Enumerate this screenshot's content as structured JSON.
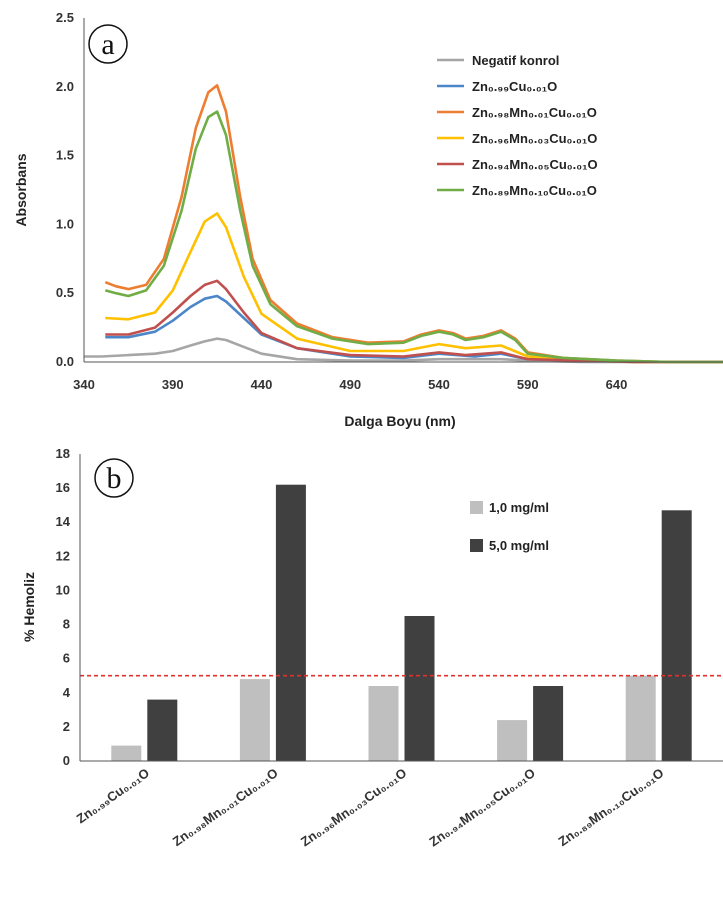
{
  "chart_data": [
    {
      "type": "line",
      "panel_label": "a",
      "xlabel": "Dalga Boyu (nm)",
      "ylabel": "Absorbans",
      "xlim": [
        340,
        700
      ],
      "ylim": [
        0,
        2.5
      ],
      "xticks": [
        "340",
        "390",
        "440",
        "490",
        "540",
        "590",
        "640"
      ],
      "yticks": [
        "0.0",
        "0.5",
        "1.0",
        "1.5",
        "2.0",
        "2.5"
      ],
      "grid": false,
      "legend_position": "top-right",
      "series": [
        {
          "name": "Negatif konrol",
          "color": "#a6a6a6",
          "x": [
            340,
            350,
            365,
            380,
            390,
            400,
            408,
            415,
            420,
            430,
            440,
            460,
            490,
            520,
            540,
            560,
            575,
            590,
            620,
            650,
            680,
            700
          ],
          "y": [
            0.04,
            0.04,
            0.05,
            0.06,
            0.08,
            0.12,
            0.15,
            0.17,
            0.16,
            0.11,
            0.06,
            0.02,
            0.01,
            0.01,
            0.02,
            0.02,
            0.02,
            0.01,
            0.0,
            0.0,
            0.0,
            0.0
          ]
        },
        {
          "name": "Zn₀.₉₉Cu₀.₀₁O",
          "color": "#4a86c8",
          "x": [
            352,
            365,
            380,
            390,
            400,
            408,
            415,
            420,
            430,
            440,
            460,
            490,
            520,
            540,
            560,
            575,
            590,
            620,
            650,
            680,
            700
          ],
          "y": [
            0.18,
            0.18,
            0.22,
            0.3,
            0.4,
            0.46,
            0.48,
            0.44,
            0.32,
            0.2,
            0.1,
            0.04,
            0.03,
            0.06,
            0.04,
            0.06,
            0.02,
            0.01,
            0.0,
            0.0,
            0.0
          ]
        },
        {
          "name": "Zn₀.₉₈Mn₀.₀₁Cu₀.₀₁O",
          "color": "#ed7d31",
          "x": [
            352,
            358,
            365,
            375,
            385,
            395,
            403,
            410,
            415,
            420,
            428,
            435,
            445,
            460,
            480,
            500,
            520,
            530,
            540,
            548,
            555,
            565,
            575,
            583,
            590,
            610,
            640,
            670,
            700
          ],
          "y": [
            0.58,
            0.55,
            0.53,
            0.56,
            0.75,
            1.2,
            1.7,
            1.96,
            2.01,
            1.82,
            1.2,
            0.75,
            0.45,
            0.28,
            0.18,
            0.14,
            0.15,
            0.2,
            0.23,
            0.21,
            0.17,
            0.19,
            0.23,
            0.17,
            0.07,
            0.03,
            0.01,
            0.0,
            0.0
          ]
        },
        {
          "name": "Zn₀.₉₆Mn₀.₀₃Cu₀.₀₁O",
          "color": "#ffc000",
          "x": [
            352,
            365,
            380,
            390,
            400,
            408,
            415,
            420,
            430,
            440,
            460,
            490,
            520,
            540,
            555,
            575,
            590,
            620,
            650,
            680,
            700
          ],
          "y": [
            0.32,
            0.31,
            0.36,
            0.52,
            0.8,
            1.02,
            1.08,
            0.98,
            0.62,
            0.35,
            0.17,
            0.08,
            0.08,
            0.13,
            0.1,
            0.12,
            0.04,
            0.01,
            0.0,
            0.0,
            0.0
          ]
        },
        {
          "name": "Zn₀.₉₄Mn₀.₀₅Cu₀.₀₁O",
          "color": "#c0504d",
          "x": [
            352,
            365,
            380,
            390,
            400,
            408,
            415,
            420,
            430,
            440,
            460,
            490,
            520,
            540,
            555,
            575,
            590,
            620,
            650,
            680,
            700
          ],
          "y": [
            0.2,
            0.2,
            0.25,
            0.36,
            0.48,
            0.56,
            0.59,
            0.53,
            0.36,
            0.21,
            0.1,
            0.05,
            0.04,
            0.07,
            0.05,
            0.07,
            0.02,
            0.01,
            0.0,
            0.0,
            0.0
          ]
        },
        {
          "name": "Zn₀.₈₉Mn₀.₁₀Cu₀.₀₁O",
          "color": "#70ad47",
          "x": [
            352,
            358,
            365,
            375,
            385,
            395,
            403,
            410,
            415,
            420,
            428,
            435,
            445,
            460,
            480,
            500,
            520,
            530,
            540,
            548,
            555,
            565,
            575,
            583,
            590,
            610,
            640,
            670,
            700
          ],
          "y": [
            0.52,
            0.5,
            0.48,
            0.52,
            0.7,
            1.1,
            1.55,
            1.78,
            1.82,
            1.65,
            1.1,
            0.7,
            0.42,
            0.26,
            0.17,
            0.13,
            0.14,
            0.19,
            0.22,
            0.2,
            0.16,
            0.18,
            0.22,
            0.16,
            0.06,
            0.03,
            0.01,
            0.0,
            0.0
          ]
        }
      ]
    },
    {
      "type": "bar",
      "panel_label": "b",
      "xlabel": "",
      "ylabel": "% Hemoliz",
      "ylim": [
        0,
        18
      ],
      "yticks": [
        "0",
        "2",
        "4",
        "6",
        "8",
        "10",
        "12",
        "14",
        "16",
        "18"
      ],
      "grid": false,
      "legend_position": "top-right",
      "categories": [
        "Zn₀.₉₉Cu₀.₀₁O",
        "Zn₀.₉₈Mn₀.₀₁Cu₀.₀₁O",
        "Zn₀.₉₆Mn₀.₀₃Cu₀.₀₁O",
        "Zn₀.₉₄Mn₀.₀₅Cu₀.₀₁O",
        "Zn₀.₈₉Mn₀.₁₀Cu₀.₀₁O"
      ],
      "series": [
        {
          "name": "1,0 mg/ml",
          "color": "#bfbfbf",
          "values": [
            0.9,
            4.8,
            4.4,
            2.4,
            5.0
          ]
        },
        {
          "name": "5,0 mg/ml",
          "color": "#404040",
          "values": [
            3.6,
            16.2,
            8.5,
            4.4,
            14.7
          ]
        }
      ],
      "reference_line": {
        "value": 5,
        "color": "#e03030",
        "style": "dashed"
      }
    }
  ]
}
